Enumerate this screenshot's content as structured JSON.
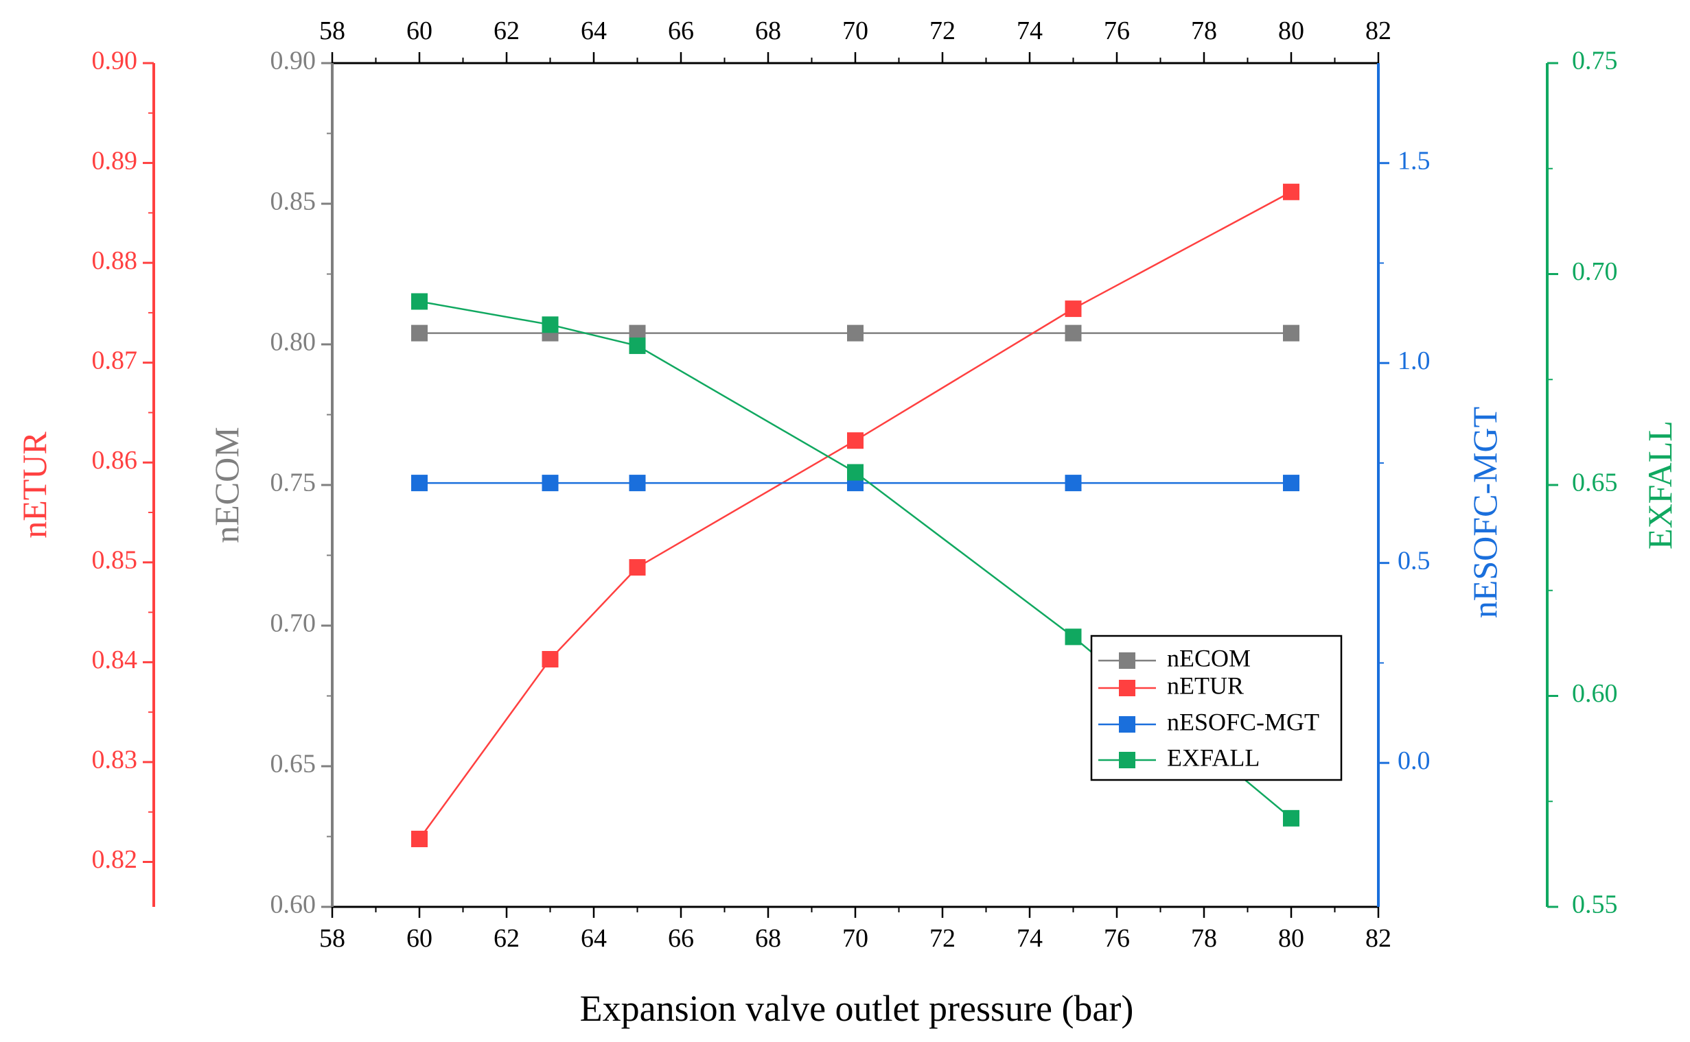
{
  "chart_data": {
    "type": "line",
    "xlabel": "Expansion valve outlet pressure (bar)",
    "x_ticks": [
      58,
      60,
      62,
      64,
      66,
      68,
      70,
      72,
      74,
      76,
      78,
      80,
      82
    ],
    "xlim": [
      58,
      82
    ],
    "x": [
      60,
      63,
      65,
      70,
      75,
      80
    ],
    "axes": {
      "nECOM": {
        "label": "nECOM",
        "color": "#7f7f7f",
        "ylim": [
          0.6,
          0.9
        ],
        "ticks": [
          "0.60",
          "0.65",
          "0.70",
          "0.75",
          "0.80",
          "0.85",
          "0.90"
        ]
      },
      "nETUR": {
        "label": "nETUR",
        "color": "#ff4040",
        "ylim": [
          0.8155,
          0.9
        ],
        "ticks": [
          "0.82",
          "0.83",
          "0.84",
          "0.85",
          "0.86",
          "0.87",
          "0.88",
          "0.89",
          "0.90"
        ]
      },
      "nESOFC": {
        "label": "nESOFC-MGT",
        "color": "#1a6fdc",
        "ylim": [
          -0.36,
          1.75
        ],
        "ticks": [
          "0.0",
          "0.5",
          "1.0",
          "1.5"
        ]
      },
      "EXFALL": {
        "label": "EXFALL",
        "color": "#10a860",
        "ylim": [
          0.55,
          0.75
        ],
        "ticks": [
          "0.55",
          "0.60",
          "0.65",
          "0.70",
          "0.75"
        ]
      }
    },
    "series": [
      {
        "name": "nECOM",
        "axis": "nECOM",
        "values": [
          0.804,
          0.804,
          0.804,
          0.804,
          0.804,
          0.804
        ]
      },
      {
        "name": "nETUR",
        "axis": "nETUR",
        "values": [
          0.8223,
          0.8403,
          0.8495,
          0.8622,
          0.8754,
          0.8871
        ]
      },
      {
        "name": "nESOFC-MGT",
        "axis": "nESOFC",
        "values": [
          0.7,
          0.7,
          0.7,
          0.7,
          0.7,
          0.7
        ]
      },
      {
        "name": "EXFALL",
        "axis": "EXFALL",
        "values": [
          0.6935,
          0.688,
          0.683,
          0.653,
          0.614,
          0.571
        ]
      }
    ],
    "legend": {
      "position": "lower-right",
      "entries": [
        "nECOM",
        "nETUR",
        "nESOFC-MGT",
        "EXFALL"
      ]
    }
  }
}
